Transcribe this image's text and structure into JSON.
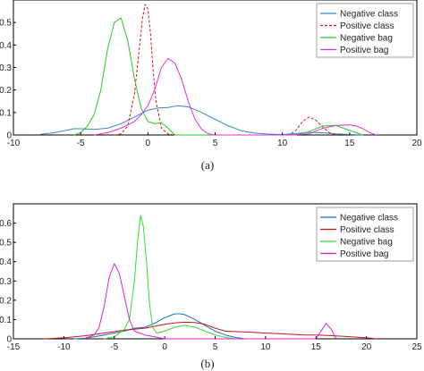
{
  "chart_data": [
    {
      "type": "line",
      "caption": "(a)",
      "xlim": [
        -10,
        20
      ],
      "ylim": [
        0,
        0.6
      ],
      "xticks": [
        -10,
        -5,
        0,
        5,
        10,
        15,
        20
      ],
      "yticks": [
        0,
        0.1,
        0.2,
        0.3,
        0.4,
        0.5
      ],
      "legend_position": "top-right",
      "grid": false,
      "series": [
        {
          "name": "Negative class",
          "color": "#3a86c8",
          "style": "solid",
          "x": [
            -8,
            -7,
            -6,
            -5.5,
            -5,
            -4,
            -3,
            -2,
            -1,
            0,
            0.8,
            1.5,
            2.2,
            3,
            4,
            5,
            6,
            7,
            8,
            9,
            10,
            11,
            12,
            13,
            14,
            15,
            16
          ],
          "y": [
            0.003,
            0.01,
            0.022,
            0.028,
            0.028,
            0.025,
            0.03,
            0.05,
            0.08,
            0.11,
            0.12,
            0.122,
            0.13,
            0.125,
            0.1,
            0.07,
            0.04,
            0.018,
            0.008,
            0.004,
            0.002,
            0.006,
            0.012,
            0.01,
            0.005,
            0.002,
            0
          ]
        },
        {
          "name": "Positive class",
          "color": "#e01010",
          "style": "dashed",
          "x": [
            -2.5,
            -2,
            -1.5,
            -1,
            -0.7,
            -0.4,
            -0.2,
            0,
            0.2,
            0.4,
            0.6,
            1,
            1.5,
            2,
            10.5,
            11,
            11.5,
            12,
            12.5,
            13,
            13.5,
            14
          ],
          "y": [
            0,
            0.005,
            0.04,
            0.18,
            0.35,
            0.52,
            0.58,
            0.56,
            0.45,
            0.28,
            0.15,
            0.03,
            0.005,
            0,
            0,
            0.02,
            0.06,
            0.08,
            0.065,
            0.035,
            0.01,
            0
          ]
        },
        {
          "name": "Negative bag",
          "color": "#22cc22",
          "style": "solid",
          "x": [
            -5.5,
            -5,
            -4.5,
            -4,
            -3.5,
            -3,
            -2.5,
            -2,
            -1.5,
            -1,
            -0.5,
            0,
            0.5,
            1,
            1.5,
            2,
            11,
            12,
            13,
            14,
            15,
            16
          ],
          "y": [
            0,
            0.01,
            0.04,
            0.09,
            0.2,
            0.38,
            0.5,
            0.52,
            0.42,
            0.25,
            0.12,
            0.06,
            0.05,
            0.055,
            0.03,
            0,
            0,
            0.015,
            0.04,
            0.042,
            0.02,
            0
          ]
        },
        {
          "name": "Positive bag",
          "color": "#e030e0",
          "style": "solid",
          "x": [
            -4,
            -3,
            -2,
            -1,
            -0.5,
            0,
            0.5,
            1,
            1.5,
            2,
            2.5,
            3,
            3.5,
            4,
            4.5,
            5,
            10.5,
            12,
            13,
            14,
            15,
            15.5,
            16,
            16.5,
            17
          ],
          "y": [
            0,
            0.01,
            0.03,
            0.06,
            0.09,
            0.13,
            0.2,
            0.3,
            0.34,
            0.32,
            0.25,
            0.15,
            0.07,
            0.025,
            0.005,
            0,
            0,
            0.005,
            0.03,
            0.042,
            0.045,
            0.04,
            0.028,
            0.01,
            0
          ]
        }
      ]
    },
    {
      "type": "line",
      "caption": "(b)",
      "xlim": [
        -15,
        25
      ],
      "ylim": [
        0,
        0.7
      ],
      "xticks": [
        -15,
        -10,
        -5,
        0,
        5,
        10,
        15,
        20,
        25
      ],
      "yticks": [
        0,
        0.1,
        0.2,
        0.3,
        0.4,
        0.5,
        0.6
      ],
      "legend_position": "top-right",
      "grid": false,
      "series": [
        {
          "name": "Negative class",
          "color": "#1f6fb8",
          "style": "solid",
          "x": [
            -9,
            -8,
            -7,
            -6,
            -5,
            -4,
            -3,
            -2,
            -1,
            0,
            1,
            1.5,
            2,
            3,
            4,
            5,
            6,
            7,
            8
          ],
          "y": [
            0,
            0.003,
            0.01,
            0.02,
            0.03,
            0.04,
            0.055,
            0.06,
            0.08,
            0.11,
            0.13,
            0.13,
            0.125,
            0.1,
            0.07,
            0.04,
            0.02,
            0.007,
            0
          ]
        },
        {
          "name": "Positive class",
          "color": "#c01818",
          "style": "solid",
          "x": [
            -12,
            -10,
            -8,
            -6,
            -4,
            -3,
            -2,
            -1,
            0,
            1,
            2,
            3,
            4,
            5,
            6,
            8,
            10,
            12,
            14,
            15,
            16,
            18,
            20,
            21
          ],
          "y": [
            0,
            0.005,
            0.015,
            0.03,
            0.045,
            0.05,
            0.055,
            0.065,
            0.075,
            0.082,
            0.086,
            0.085,
            0.075,
            0.055,
            0.04,
            0.035,
            0.03,
            0.025,
            0.02,
            0.02,
            0.018,
            0.012,
            0.005,
            0
          ]
        },
        {
          "name": "Negative bag",
          "color": "#33dd33",
          "style": "solid",
          "x": [
            -6,
            -5,
            -4,
            -3.5,
            -3,
            -2.7,
            -2.4,
            -2.1,
            -1.8,
            -1.5,
            -1.2,
            -0.8,
            0,
            1,
            2,
            3,
            4,
            5,
            6,
            7
          ],
          "y": [
            0,
            0.01,
            0.05,
            0.1,
            0.3,
            0.5,
            0.64,
            0.58,
            0.4,
            0.18,
            0.06,
            0.03,
            0.04,
            0.06,
            0.07,
            0.06,
            0.04,
            0.02,
            0.008,
            0
          ]
        },
        {
          "name": "Positive bag",
          "color": "#e020d8",
          "style": "solid",
          "x": [
            -8,
            -7,
            -6.5,
            -6,
            -5.5,
            -5,
            -4.5,
            -4,
            -3.5,
            -3,
            -2,
            -1,
            0,
            15,
            15.5,
            16,
            16.5,
            17
          ],
          "y": [
            0,
            0.02,
            0.06,
            0.17,
            0.32,
            0.39,
            0.34,
            0.22,
            0.1,
            0.04,
            0.02,
            0.01,
            0,
            0,
            0.04,
            0.08,
            0.05,
            0
          ]
        }
      ]
    }
  ]
}
